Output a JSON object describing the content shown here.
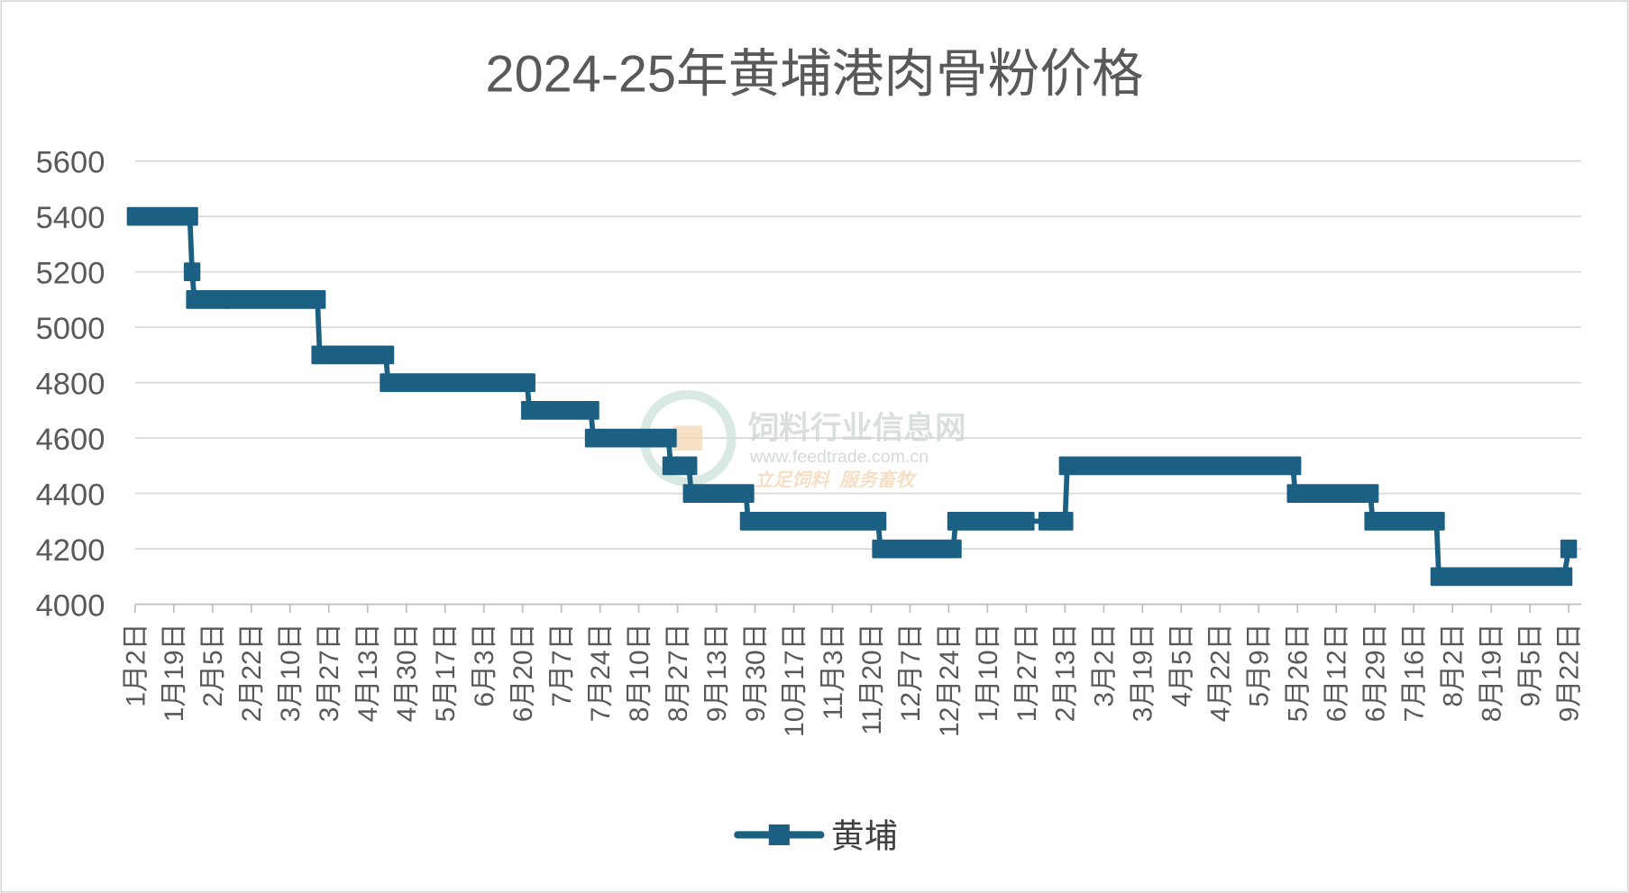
{
  "chart_data": {
    "type": "line",
    "title": "2024-25年黄埔港肉骨粉价格",
    "xlabel": "",
    "ylabel": "",
    "ylim": [
      4000,
      5600
    ],
    "yticks": [
      "4000",
      "4200",
      "4400",
      "4600",
      "4800",
      "5000",
      "5200",
      "5400",
      "5600"
    ],
    "grid": true,
    "legend_position": "bottom",
    "x_start": "2024-01-02",
    "x_end": "2025-09-22",
    "categories": [
      "1月2日",
      "1月19日",
      "2月5日",
      "2月22日",
      "3月10日",
      "3月27日",
      "4月13日",
      "4月30日",
      "5月17日",
      "6月3日",
      "6月20日",
      "7月7日",
      "7月24日",
      "8月10日",
      "8月27日",
      "9月13日",
      "9月30日",
      "10月17日",
      "11月3日",
      "11月20日",
      "12月7日",
      "12月24日",
      "1月10日",
      "1月27日",
      "2月13日",
      "3月2日",
      "3月19日",
      "4月5日",
      "4月22日",
      "5月9日",
      "5月26日",
      "6月12日",
      "6月29日",
      "7月16日",
      "8月2日",
      "8月19日",
      "9月5日",
      "9月22日"
    ],
    "series": [
      {
        "name": "黄埔",
        "color": "#1b5f82",
        "runs": [
          {
            "start": "2024-01-02",
            "end": "2024-01-26",
            "value": 5400
          },
          {
            "start": "2024-01-27",
            "end": "2024-01-27",
            "value": 5200
          },
          {
            "start": "2024-01-28",
            "end": "2024-02-09",
            "value": 5100
          },
          {
            "start": "2024-02-14",
            "end": "2024-03-22",
            "value": 5100
          },
          {
            "start": "2024-03-23",
            "end": "2024-04-21",
            "value": 4900
          },
          {
            "start": "2024-04-22",
            "end": "2024-06-22",
            "value": 4800
          },
          {
            "start": "2024-06-23",
            "end": "2024-07-20",
            "value": 4700
          },
          {
            "start": "2024-07-21",
            "end": "2024-08-23",
            "value": 4600
          },
          {
            "start": "2024-08-24",
            "end": "2024-09-01",
            "value": 4500
          },
          {
            "start": "2024-09-02",
            "end": "2024-09-26",
            "value": 4400
          },
          {
            "start": "2024-09-27",
            "end": "2024-11-23",
            "value": 4300
          },
          {
            "start": "2024-11-24",
            "end": "2024-12-26",
            "value": 4200
          },
          {
            "start": "2024-12-27",
            "end": "2025-01-27",
            "value": 4300
          },
          {
            "start": "2025-02-05",
            "end": "2025-02-13",
            "value": 4300
          },
          {
            "start": "2025-02-14",
            "end": "2025-05-24",
            "value": 4500
          },
          {
            "start": "2025-05-25",
            "end": "2025-06-27",
            "value": 4400
          },
          {
            "start": "2025-06-28",
            "end": "2025-07-26",
            "value": 4300
          },
          {
            "start": "2025-07-27",
            "end": "2025-09-20",
            "value": 4100
          },
          {
            "start": "2025-09-22",
            "end": "2025-09-22",
            "value": 4200
          }
        ]
      }
    ]
  },
  "watermark": {
    "name": "饲料行业信息网",
    "url": "www.feedtrade.com.cn",
    "slogan": "立足饲料  服务畜牧"
  }
}
